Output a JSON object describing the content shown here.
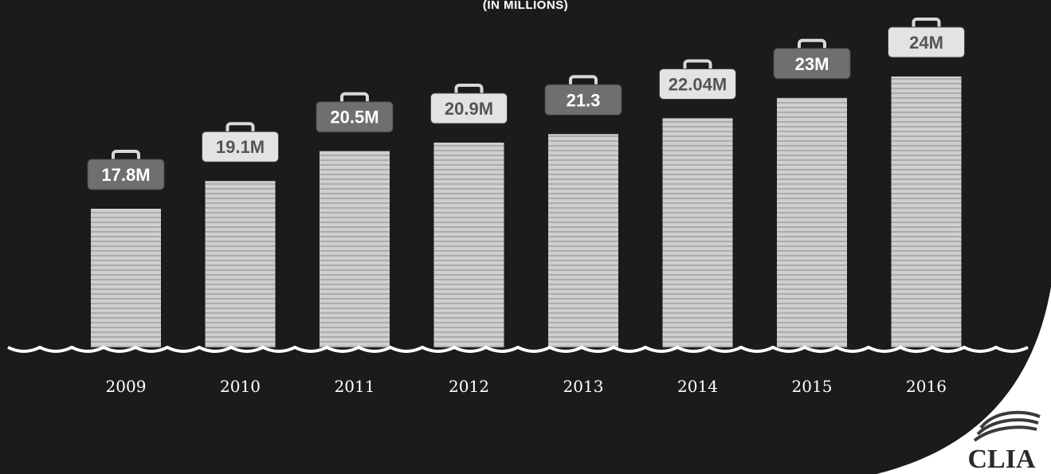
{
  "subtitle": "(IN MILLIONS)",
  "logo_text": "CLIA",
  "colors": {
    "background": "#1b1b1b",
    "wave": "#ffffff",
    "bar_light": "#e3e3e3",
    "bar_dark": "#6f6f6f",
    "label_text": "#ffffff",
    "year_text": "#ffffff"
  },
  "chart_data": {
    "type": "bar",
    "title": "",
    "xlabel": "",
    "ylabel": "",
    "categories": [
      "2009",
      "2010",
      "2011",
      "2012",
      "2013",
      "2014",
      "2015",
      "2016"
    ],
    "values": [
      17.8,
      19.1,
      20.5,
      20.9,
      21.3,
      22.04,
      23,
      24
    ],
    "data_labels": [
      "17.8M",
      "19.1M",
      "20.5M",
      "20.9M",
      "21.3",
      "22.04M",
      "23M",
      "24M"
    ],
    "ylim": [
      0,
      24
    ],
    "grid": false,
    "legend": "none"
  }
}
